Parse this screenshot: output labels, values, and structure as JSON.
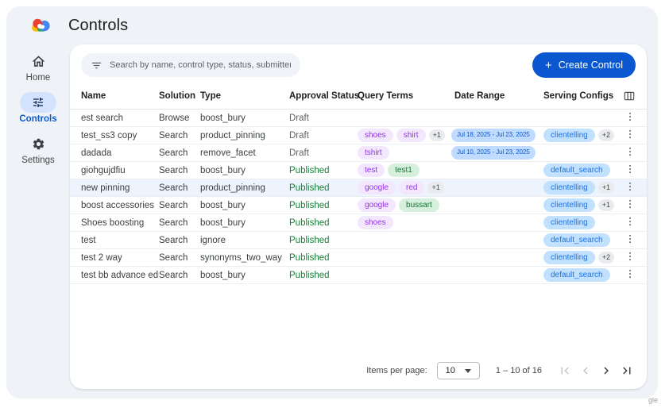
{
  "app": {
    "title": "Controls",
    "watermark": "gle"
  },
  "sidebar": {
    "items": [
      {
        "label": "Home",
        "icon": "home-icon",
        "active": false
      },
      {
        "label": "Controls",
        "icon": "tune-icon",
        "active": true
      },
      {
        "label": "Settings",
        "icon": "settings-icon",
        "active": false
      }
    ]
  },
  "toolbar": {
    "search_placeholder": "Search by name, control type, status, submitter, requested on",
    "create_button": "Create Control"
  },
  "table": {
    "columns": [
      "Name",
      "Solution",
      "Type",
      "Approval Status",
      "Query Terms",
      "Date Range",
      "Serving Configs"
    ],
    "rows": [
      {
        "name": "est search",
        "solution": "Browse",
        "type": "boost_bury",
        "status": "Draft",
        "query_terms": [],
        "query_extra": "",
        "date_range": "",
        "serving_configs": [],
        "serving_extra": "",
        "highlighted": false
      },
      {
        "name": "test_ss3 copy",
        "solution": "Search",
        "type": "product_pinning",
        "status": "Draft",
        "query_terms": [
          {
            "text": "shoes",
            "color": "purple"
          },
          {
            "text": "shirt",
            "color": "purple"
          }
        ],
        "query_extra": "+1",
        "date_range": "Jul 18, 2025 - Jul 23, 2025",
        "serving_configs": [
          "clientelling"
        ],
        "serving_extra": "+2",
        "highlighted": false
      },
      {
        "name": "dadada",
        "solution": "Search",
        "type": "remove_facet",
        "status": "Draft",
        "query_terms": [
          {
            "text": "tshirt",
            "color": "purple"
          }
        ],
        "query_extra": "",
        "date_range": "Jul 10, 2025 - Jul 23, 2025",
        "serving_configs": [],
        "serving_extra": "",
        "highlighted": false
      },
      {
        "name": "giohgujdfiu",
        "solution": "Search",
        "type": "boost_bury",
        "status": "Published",
        "query_terms": [
          {
            "text": "test",
            "color": "purple"
          },
          {
            "text": "test1",
            "color": "green"
          }
        ],
        "query_extra": "",
        "date_range": "",
        "serving_configs": [
          "default_search"
        ],
        "serving_extra": "",
        "highlighted": false
      },
      {
        "name": "new pinning",
        "solution": "Search",
        "type": "product_pinning",
        "status": "Published",
        "query_terms": [
          {
            "text": "google",
            "color": "purple"
          },
          {
            "text": "red",
            "color": "purple"
          }
        ],
        "query_extra": "+1",
        "date_range": "",
        "serving_configs": [
          "clientelling"
        ],
        "serving_extra": "+1",
        "highlighted": true
      },
      {
        "name": "boost accessories",
        "solution": "Search",
        "type": "boost_bury",
        "status": "Published",
        "query_terms": [
          {
            "text": "google",
            "color": "purple"
          },
          {
            "text": "bussart",
            "color": "green"
          }
        ],
        "query_extra": "",
        "date_range": "",
        "serving_configs": [
          "clientelling"
        ],
        "serving_extra": "+1",
        "highlighted": false
      },
      {
        "name": "Shoes boosting",
        "solution": "Search",
        "type": "boost_bury",
        "status": "Published",
        "query_terms": [
          {
            "text": "shoes",
            "color": "purple"
          }
        ],
        "query_extra": "",
        "date_range": "",
        "serving_configs": [
          "clientelling"
        ],
        "serving_extra": "",
        "highlighted": false
      },
      {
        "name": "test",
        "solution": "Search",
        "type": "ignore",
        "status": "Published",
        "query_terms": [],
        "query_extra": "",
        "date_range": "",
        "serving_configs": [
          "default_search"
        ],
        "serving_extra": "",
        "highlighted": false
      },
      {
        "name": "test 2 way",
        "solution": "Search",
        "type": "synonyms_two_way",
        "status": "Published",
        "query_terms": [],
        "query_extra": "",
        "date_range": "",
        "serving_configs": [
          "clientelling"
        ],
        "serving_extra": "+2",
        "highlighted": false
      },
      {
        "name": "test bb advance editor",
        "solution": "Search",
        "type": "boost_bury",
        "status": "Published",
        "query_terms": [],
        "query_extra": "",
        "date_range": "",
        "serving_configs": [
          "default_search"
        ],
        "serving_extra": "",
        "highlighted": false
      }
    ]
  },
  "pagination": {
    "items_per_page_label": "Items per page:",
    "page_size": "10",
    "range_label": "1 – 10 of 16"
  },
  "colors": {
    "accent": "#0b57d0",
    "published": "#188038",
    "draft": "#5f6368",
    "chip_purple_bg": "#f3e7fd",
    "chip_purple_text": "#9334e6",
    "chip_green_bg": "#d7f0dd",
    "chip_green_text": "#137333",
    "chip_blue_bg": "#c2e1ff",
    "chip_blue_text": "#1a73e8",
    "chip_date_bg": "#bfdbff",
    "chip_date_text": "#0b57d0",
    "active_pill_bg": "#d3e3fd",
    "highlight_row_bg": "#eef4fd"
  }
}
